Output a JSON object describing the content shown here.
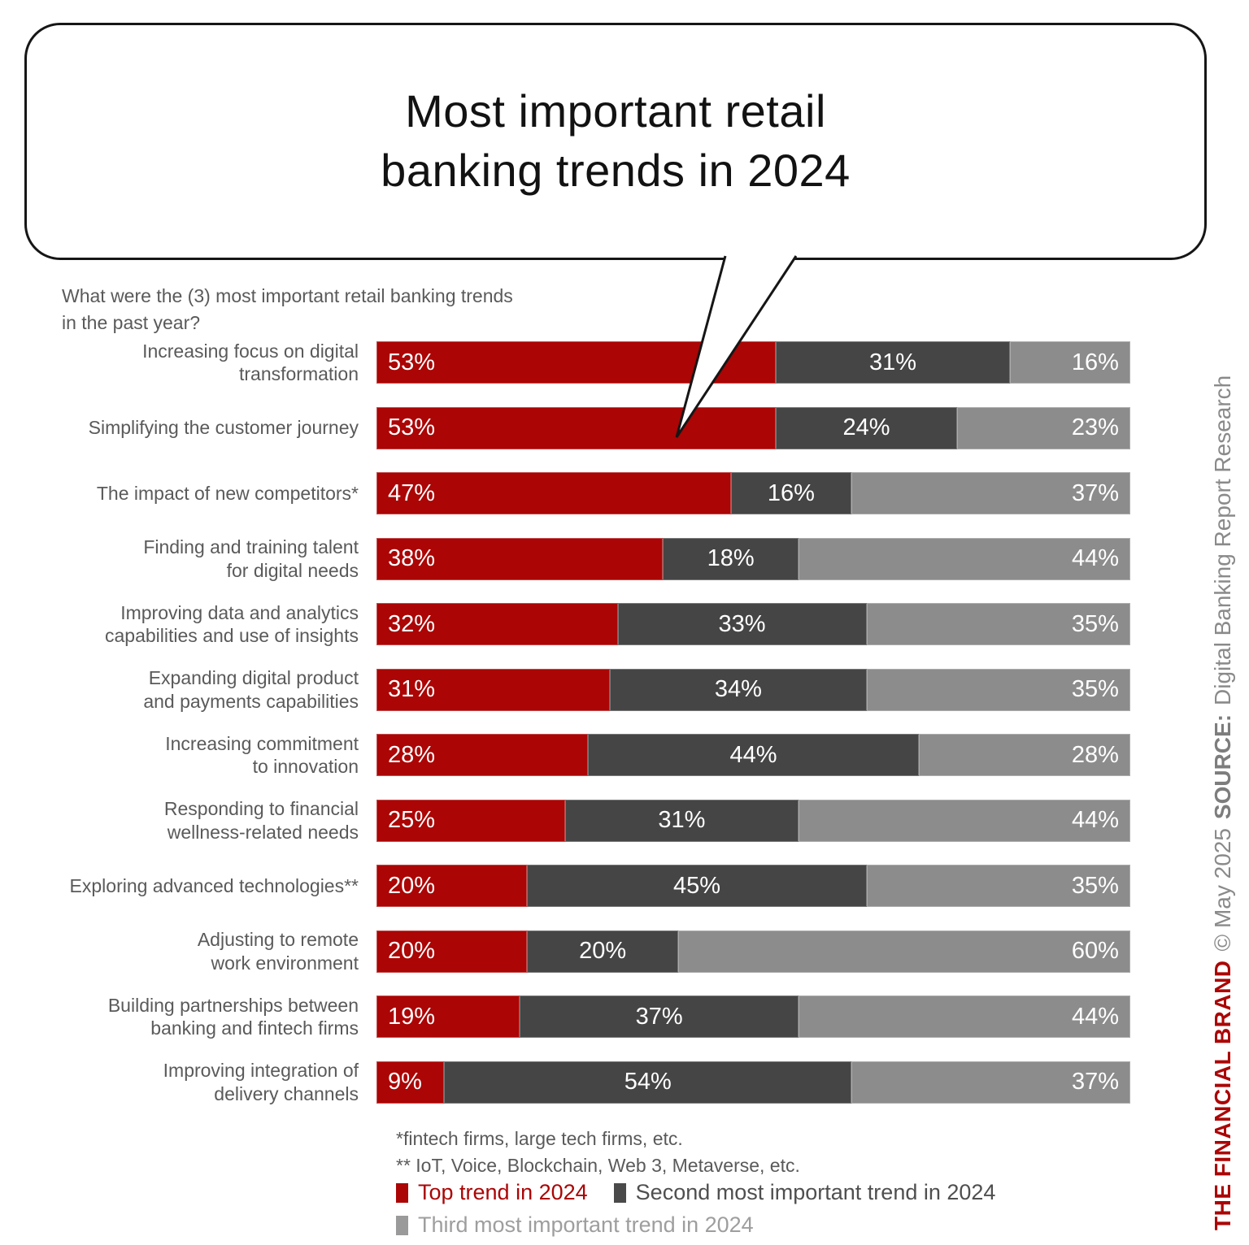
{
  "title": "Most important retail\nbanking trends in 2024",
  "question": "What were the (3) most important retail banking trends\nin the past year?",
  "footnotes": [
    "*fintech firms, large tech firms, etc.",
    "** IoT, Voice, Blockchain, Web 3, Metaverse, etc."
  ],
  "colors": {
    "top_trend_red": "#ab0505",
    "second_trend_dark_gray": "#454545",
    "third_trend_light_gray": "#8c8c8c",
    "label_gray": "#5a5a5a",
    "caption_gray": "#8a8a8a",
    "bubble_border_black": "#161616"
  },
  "chart_data": {
    "type": "bar",
    "orientation": "horizontal",
    "stacked": true,
    "unit": "%",
    "xlim": [
      0,
      100
    ],
    "grid": false,
    "legend_position": "bottom",
    "title": "Most important retail banking trends in 2024",
    "categories": [
      "Increasing focus on digital\ntransformation",
      "Simplifying the customer journey",
      "The impact of new competitors*",
      "Finding and training talent\nfor digital needs",
      "Improving data and analytics\ncapabilities and use of insights",
      "Expanding digital product\nand payments capabilities",
      "Increasing commitment\nto innovation",
      "Responding to financial\nwellness-related needs",
      "Exploring advanced technologies**",
      "Adjusting to remote\nwork environment",
      "Building partnerships between\nbanking and fintech firms",
      "Improving integration of\ndelivery channels"
    ],
    "series": [
      {
        "name": "Top trend in 2024",
        "color": "#ab0505",
        "values": [
          53,
          53,
          47,
          38,
          32,
          31,
          28,
          25,
          20,
          20,
          19,
          9
        ]
      },
      {
        "name": "Second most important trend in 2024",
        "color": "#454545",
        "values": [
          31,
          24,
          16,
          18,
          33,
          34,
          44,
          31,
          45,
          20,
          37,
          54
        ]
      },
      {
        "name": "Third most important trend in 2024",
        "color": "#8c8c8c",
        "values": [
          16,
          23,
          37,
          44,
          35,
          35,
          28,
          44,
          35,
          60,
          44,
          37
        ]
      }
    ]
  },
  "legend": {
    "items": [
      {
        "label": "Top trend in 2024",
        "swatch": "#ab0505",
        "text_color": "#ab0505"
      },
      {
        "label": "Second most important trend in 2024",
        "swatch": "#4a4a4a",
        "text_color": "#4f4f4f"
      },
      {
        "label": "Third most important trend in 2024",
        "swatch": "#9a9a9a",
        "text_color": "#9e9e9e"
      }
    ],
    "rows": [
      [
        0,
        1
      ],
      [
        2
      ]
    ]
  },
  "caption": {
    "brand": "THE FINANCIAL BRAND",
    "copyright": "© May 2025",
    "source_label": "SOURCE:",
    "source_text": "Digital Banking Report Research"
  }
}
